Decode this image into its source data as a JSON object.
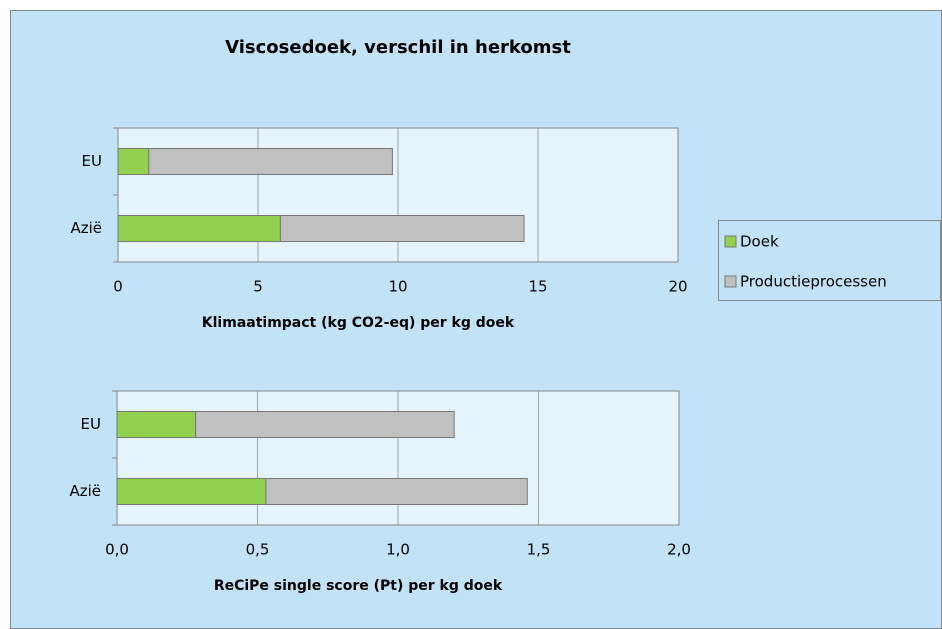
{
  "chart_data": [
    {
      "type": "stacked-bar-horizontal",
      "title": "Viscosedoek, verschil in herkomst",
      "categories": [
        "EU",
        "Azië"
      ],
      "series": [
        {
          "name": "Doek",
          "color": "#92d050",
          "values": [
            1.1,
            5.8
          ]
        },
        {
          "name": "Productieprocessen",
          "color": "#c0c0c0",
          "values": [
            8.7,
            8.7
          ]
        }
      ],
      "xlabel": "Klimaatimpact (kg CO2-eq) per kg doek",
      "xlim": [
        0,
        20
      ],
      "xticks": [
        0,
        5,
        10,
        15,
        20
      ],
      "grid": true,
      "legend": "right"
    },
    {
      "type": "stacked-bar-horizontal",
      "categories": [
        "EU",
        "Azië"
      ],
      "series": [
        {
          "color": "#92d050",
          "values": [
            0.28,
            0.53
          ]
        },
        {
          "color": "#c0c0c0",
          "values": [
            0.92,
            0.93
          ]
        }
      ],
      "xlabel": "ReCiPe single score (Pt) per kg doek",
      "xlim": [
        0,
        2
      ],
      "xticks": [
        {
          "value": 0,
          "label": "0,0"
        },
        {
          "value": 0.5,
          "label": "0,5"
        },
        {
          "value": 1,
          "label": "1,0"
        },
        {
          "value": 1.5,
          "label": "1,5"
        },
        {
          "value": 2,
          "label": "2,0"
        }
      ],
      "grid": true
    }
  ]
}
